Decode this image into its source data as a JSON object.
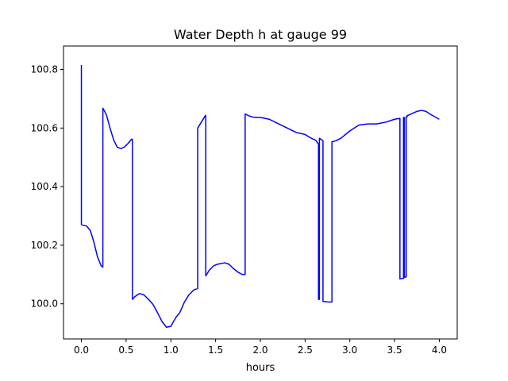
{
  "chart_data": {
    "type": "line",
    "title": "Water Depth h at gauge 99",
    "xlabel": "hours",
    "ylabel": "",
    "xlim": [
      -0.2,
      4.2
    ],
    "ylim": [
      99.88,
      100.88
    ],
    "xticks": [
      0.0,
      0.5,
      1.0,
      1.5,
      2.0,
      2.5,
      3.0,
      3.5,
      4.0
    ],
    "xtick_labels": [
      "0.0",
      "0.5",
      "1.0",
      "1.5",
      "2.0",
      "2.5",
      "3.0",
      "3.5",
      "4.0"
    ],
    "yticks": [
      100.0,
      100.2,
      100.4,
      100.6,
      100.8
    ],
    "ytick_labels": [
      "100.0",
      "100.2",
      "100.4",
      "100.6",
      "100.8"
    ],
    "grid": false,
    "series": [
      {
        "color": "#0000ff",
        "x": [
          0.0,
          0.0,
          0.02,
          0.06,
          0.1,
          0.14,
          0.18,
          0.22,
          0.24,
          0.24,
          0.28,
          0.32,
          0.36,
          0.4,
          0.44,
          0.48,
          0.52,
          0.56,
          0.57,
          0.57,
          0.6,
          0.65,
          0.7,
          0.75,
          0.8,
          0.85,
          0.9,
          0.95,
          1.0,
          1.03,
          1.06,
          1.1,
          1.15,
          1.2,
          1.26,
          1.3,
          1.3,
          1.34,
          1.38,
          1.39,
          1.39,
          1.43,
          1.48,
          1.52,
          1.56,
          1.6,
          1.65,
          1.7,
          1.75,
          1.8,
          1.83,
          1.83,
          1.87,
          1.92,
          2.0,
          2.1,
          2.2,
          2.3,
          2.4,
          2.5,
          2.57,
          2.62,
          2.65,
          2.65,
          2.66,
          2.66,
          2.7,
          2.7,
          2.76,
          2.8,
          2.8,
          2.84,
          2.9,
          3.0,
          3.1,
          3.2,
          3.3,
          3.4,
          3.5,
          3.56,
          3.56,
          3.6,
          3.6,
          3.61,
          3.61,
          3.63,
          3.63,
          3.64,
          3.64,
          3.7,
          3.75,
          3.8,
          3.85,
          3.9,
          4.0
        ],
        "values": [
          100.815,
          100.27,
          100.268,
          100.265,
          100.25,
          100.21,
          100.16,
          100.13,
          100.125,
          100.668,
          100.645,
          100.6,
          100.56,
          100.535,
          100.53,
          100.535,
          100.547,
          100.562,
          100.562,
          100.015,
          100.025,
          100.035,
          100.03,
          100.015,
          99.998,
          99.97,
          99.94,
          99.92,
          99.923,
          99.94,
          99.955,
          99.97,
          100.005,
          100.03,
          100.048,
          100.052,
          100.6,
          100.62,
          100.64,
          100.643,
          100.095,
          100.115,
          100.13,
          100.135,
          100.137,
          100.14,
          100.135,
          100.12,
          100.108,
          100.1,
          100.1,
          100.648,
          100.642,
          100.637,
          100.636,
          100.63,
          100.615,
          100.6,
          100.585,
          100.578,
          100.565,
          100.558,
          100.545,
          100.015,
          100.015,
          100.565,
          100.557,
          100.008,
          100.006,
          100.006,
          100.553,
          100.556,
          100.565,
          100.59,
          100.61,
          100.614,
          100.614,
          100.62,
          100.63,
          100.633,
          100.085,
          100.087,
          100.636,
          100.636,
          100.09,
          100.092,
          100.638,
          100.638,
          100.642,
          100.65,
          100.657,
          100.66,
          100.657,
          100.647,
          100.63
        ]
      }
    ]
  }
}
